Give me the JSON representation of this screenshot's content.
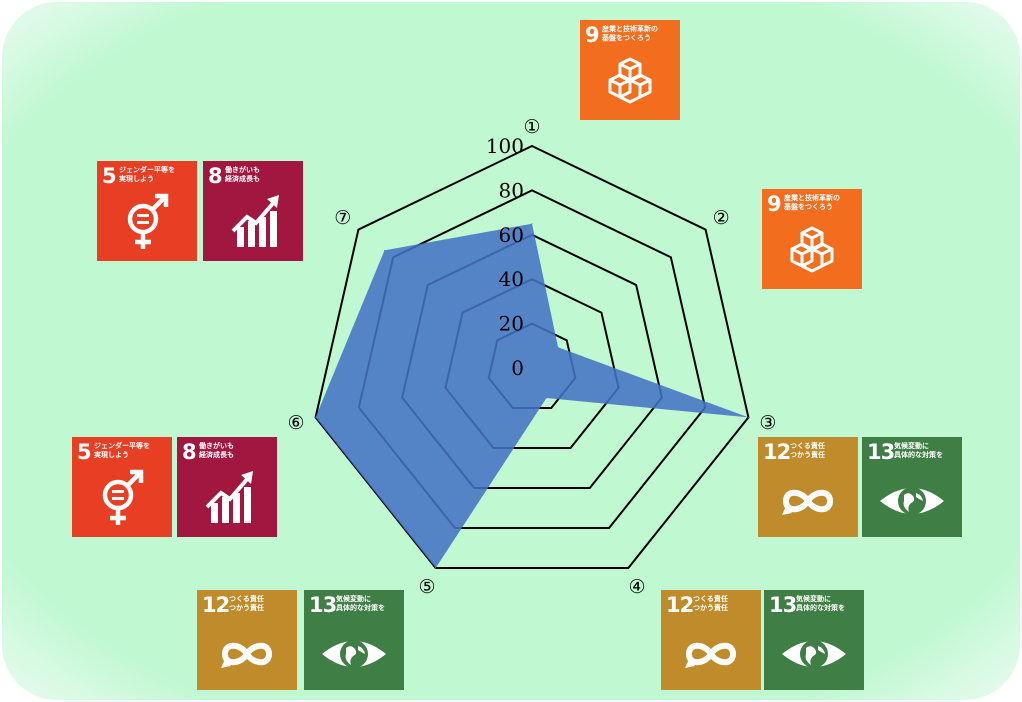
{
  "chart_data": {
    "type": "radar",
    "axes": [
      "①",
      "②",
      "③",
      "④",
      "⑤",
      "⑥",
      "⑦"
    ],
    "radial_ticks": [
      "0",
      "20",
      "40",
      "60",
      "80",
      "100"
    ],
    "rlim": [
      0,
      100
    ],
    "values": [
      65,
      15,
      100,
      15,
      100,
      100,
      85
    ],
    "fill_color": "#4472c4",
    "grid": true
  },
  "colors": {
    "background": "#c0f8d2",
    "goal5": "#e83e24",
    "goal8": "#a1173f",
    "goal9": "#f36d1f",
    "goal12": "#c08b2b",
    "goal13": "#3f7e44"
  },
  "badges": {
    "goal5": {
      "number": "5",
      "caption": "ジェンダー平等を\n実現しよう",
      "icon": "gender-equality-icon"
    },
    "goal8": {
      "number": "8",
      "caption": "働きがいも\n経済成長も",
      "icon": "growth-chart-icon"
    },
    "goal9": {
      "number": "9",
      "caption": "産業と技術革新の\n基盤をつくろう",
      "icon": "cubes-icon"
    },
    "goal12": {
      "number": "12",
      "caption": "つくる責任\nつかう責任",
      "icon": "infinity-icon"
    },
    "goal13": {
      "number": "13",
      "caption": "気候変動に\n具体的な対策を",
      "icon": "earth-eye-icon"
    }
  }
}
